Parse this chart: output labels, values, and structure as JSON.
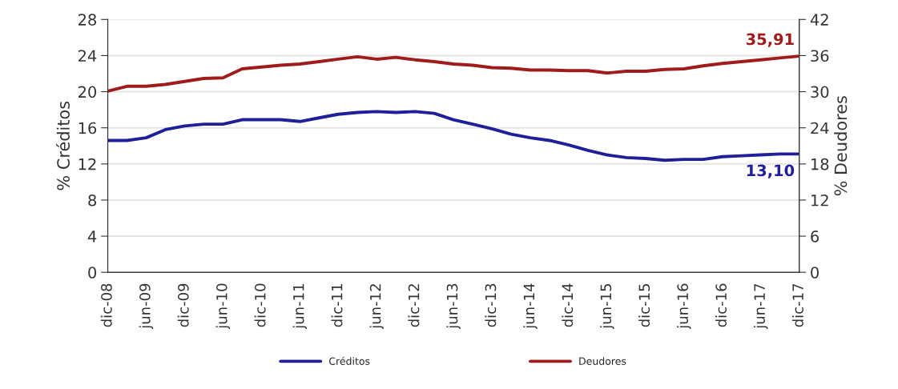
{
  "chart_data": {
    "type": "line",
    "categories": [
      "dic-08",
      null,
      "jun-09",
      null,
      "dic-09",
      null,
      "jun-10",
      null,
      "dic-10",
      null,
      "jun-11",
      null,
      "dic-11",
      null,
      "jun-12",
      null,
      "dic-12",
      null,
      "jun-13",
      null,
      "dic-13",
      null,
      "jun-14",
      null,
      "dic-14",
      null,
      "jun-15",
      null,
      "dic-15",
      null,
      "jun-16",
      null,
      "dic-16",
      null,
      "jun-17",
      null,
      "dic-17"
    ],
    "ylabel": "% Créditos",
    "y2label": "% Deudores",
    "ylim": [
      0,
      28
    ],
    "yticks": [
      0,
      4,
      8,
      12,
      16,
      20,
      24,
      28
    ],
    "y2lim": [
      0,
      42
    ],
    "y2ticks": [
      0,
      6,
      12,
      18,
      24,
      30,
      36,
      42
    ],
    "grid": "y",
    "legend": "bottom",
    "series": [
      {
        "name": "Créditos",
        "color": "#1f1f9a",
        "values": [
          14.6,
          14.6,
          14.9,
          15.8,
          16.2,
          16.4,
          16.4,
          16.9,
          16.9,
          16.9,
          16.7,
          17.1,
          17.5,
          17.7,
          17.8,
          17.7,
          17.8,
          17.6,
          16.9,
          16.4,
          15.9,
          15.3,
          14.9,
          14.6,
          14.1,
          13.5,
          13.0,
          12.7,
          12.6,
          12.4,
          12.5,
          12.5,
          12.8,
          12.9,
          13.0,
          13.1,
          13.1
        ],
        "value_labels": [
          null,
          null,
          null,
          null,
          null,
          null,
          null,
          null,
          null,
          null,
          null,
          null,
          null,
          null,
          null,
          null,
          null,
          null,
          null,
          null,
          null,
          null,
          null,
          null,
          null,
          null,
          null,
          null,
          null,
          null,
          null,
          null,
          null,
          null,
          null,
          null,
          "13,10"
        ]
      },
      {
        "name": "Deudores",
        "color": "#a01c1c",
        "axis": "y2",
        "values": [
          30.1,
          30.9,
          30.9,
          31.2,
          31.7,
          32.2,
          32.3,
          33.8,
          34.1,
          34.4,
          34.6,
          35.0,
          35.4,
          35.8,
          35.4,
          35.7,
          35.3,
          35.0,
          34.6,
          34.4,
          34.0,
          33.9,
          33.6,
          33.6,
          33.5,
          33.5,
          33.1,
          33.4,
          33.4,
          33.7,
          33.8,
          34.3,
          34.7,
          35.0,
          35.3,
          35.6,
          35.91
        ],
        "value_labels": [
          null,
          null,
          null,
          null,
          null,
          null,
          null,
          null,
          null,
          null,
          null,
          null,
          null,
          null,
          null,
          null,
          null,
          null,
          null,
          null,
          null,
          null,
          null,
          null,
          null,
          null,
          null,
          null,
          null,
          null,
          null,
          null,
          null,
          null,
          null,
          null,
          "35,91"
        ]
      }
    ]
  }
}
